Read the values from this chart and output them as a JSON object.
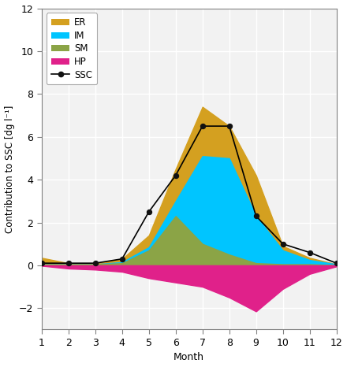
{
  "months": [
    1,
    2,
    3,
    4,
    5,
    6,
    7,
    8,
    9,
    10,
    11,
    12
  ],
  "ER": [
    0.35,
    0.1,
    0.1,
    0.3,
    1.4,
    4.5,
    7.4,
    6.5,
    4.2,
    0.9,
    0.35,
    0.05
  ],
  "IM": [
    0.05,
    0.05,
    0.05,
    0.15,
    0.85,
    3.0,
    5.1,
    5.0,
    2.3,
    0.7,
    0.25,
    0.05
  ],
  "SM": [
    0.05,
    0.05,
    0.05,
    0.1,
    0.7,
    2.3,
    1.0,
    0.5,
    0.1,
    0.05,
    0.05,
    0.0
  ],
  "HP": [
    -0.02,
    -0.15,
    -0.2,
    -0.3,
    -0.6,
    -0.8,
    -1.0,
    -1.5,
    -2.15,
    -1.1,
    -0.4,
    -0.05
  ],
  "SSC": [
    0.1,
    0.1,
    0.1,
    0.3,
    2.5,
    4.2,
    6.5,
    6.5,
    2.3,
    1.0,
    0.6,
    0.1
  ],
  "ER_color": "#D4A020",
  "IM_color": "#00C5FF",
  "SM_color": "#8BA446",
  "HP_color": "#E0218A",
  "SSC_color": "#000000",
  "ylim": [
    -3,
    12
  ],
  "yticks": [
    -2,
    0,
    2,
    4,
    6,
    8,
    10,
    12
  ],
  "xlabel": "Month",
  "ylabel": "Contribution to SSC [dg l⁻¹]",
  "bg_color": "#f2f2f2",
  "grid_color": "#ffffff",
  "spine_color": "#808080"
}
